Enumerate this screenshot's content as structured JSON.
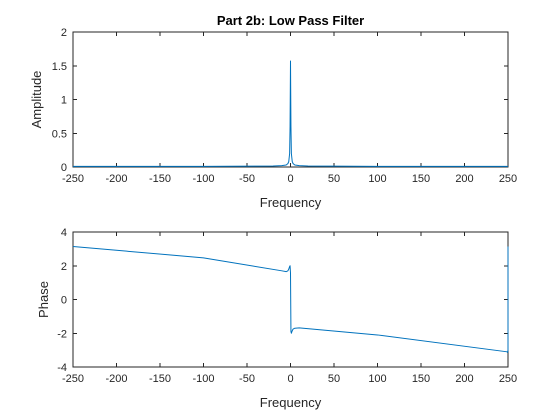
{
  "chart_data": [
    {
      "type": "line",
      "title": "Part 2b: Low Pass Filter",
      "xlabel": "Frequency",
      "ylabel": "Amplitude",
      "xlim": [
        -250,
        250
      ],
      "ylim": [
        0,
        2
      ],
      "xticks": [
        -250,
        -200,
        -150,
        -100,
        -50,
        0,
        50,
        100,
        150,
        200,
        250
      ],
      "yticks": [
        0,
        0.5,
        1,
        1.5,
        2
      ],
      "xtick_labels": [
        "-250",
        "-200",
        "-150",
        "-100",
        "-50",
        "0",
        "50",
        "100",
        "150",
        "200",
        "250"
      ],
      "ytick_labels": [
        "0",
        "0.5",
        "1",
        "1.5",
        "2"
      ],
      "grid": false,
      "color": "#0072bd",
      "series": [
        {
          "x": [
            -250,
            -100,
            -20,
            -10,
            -5,
            -3,
            -2,
            -1,
            -0.5,
            0,
            0.5,
            1,
            2,
            3,
            5,
            10,
            20,
            100,
            250
          ],
          "values": [
            0.01,
            0.01,
            0.015,
            0.02,
            0.03,
            0.05,
            0.08,
            0.2,
            0.6,
            1.57,
            0.6,
            0.2,
            0.08,
            0.05,
            0.03,
            0.02,
            0.015,
            0.01,
            0.01
          ]
        }
      ]
    },
    {
      "type": "line",
      "title": "",
      "xlabel": "Frequency",
      "ylabel": "Phase",
      "xlim": [
        -250,
        250
      ],
      "ylim": [
        -4,
        4
      ],
      "xticks": [
        -250,
        -200,
        -150,
        -100,
        -50,
        0,
        50,
        100,
        150,
        200,
        250
      ],
      "yticks": [
        -4,
        -2,
        0,
        2,
        4
      ],
      "xtick_labels": [
        "-250",
        "-200",
        "-150",
        "-100",
        "-50",
        "0",
        "50",
        "100",
        "150",
        "200",
        "250"
      ],
      "ytick_labels": [
        "-4",
        "-2",
        "0",
        "2",
        "4"
      ],
      "grid": false,
      "color": "#0072bd",
      "series": [
        {
          "x": [
            -250,
            -100,
            -10,
            -5,
            -3,
            -2,
            -1,
            -0.5,
            0,
            0.5,
            1,
            2,
            3,
            5,
            10,
            100,
            249,
            249.5,
            250,
            250
          ],
          "values": [
            3.14,
            2.47,
            1.7,
            1.65,
            1.7,
            1.8,
            1.95,
            2.0,
            1.57,
            -1.9,
            -2.0,
            -1.85,
            -1.75,
            -1.7,
            -1.68,
            -2.1,
            -3.1,
            -3.14,
            -3.0,
            3.14
          ]
        }
      ]
    }
  ]
}
